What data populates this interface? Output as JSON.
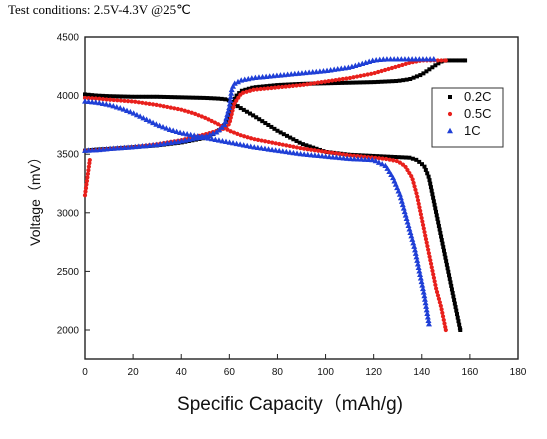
{
  "caption": "Test conditions: 2.5V-4.3V @25℃",
  "chart_data": {
    "type": "scatter",
    "xlabel": "Specific Capacity（mAh/g)",
    "ylabel": "Voltage（mV）",
    "xlim": [
      0,
      180
    ],
    "ylim": [
      1800,
      4500
    ],
    "xticks": [
      0,
      20,
      40,
      60,
      80,
      100,
      120,
      140,
      160,
      180
    ],
    "yticks": [
      2000,
      2500,
      3000,
      3500,
      4000,
      4500
    ],
    "grid": false,
    "legend_position": "right",
    "series": [
      {
        "name": "0.2C",
        "color": "#000000",
        "marker": "square",
        "segments": [
          {
            "x": [
              0,
              5,
              10,
              20,
              30,
              40,
              50,
              55,
              58,
              60,
              62,
              65,
              70,
              80,
              90,
              100,
              110,
              120,
              130,
              135,
              138,
              141,
              143,
              145,
              147,
              149,
              151,
              153,
              155,
              156
            ],
            "y": [
              4010,
              4000,
              3995,
              3990,
              3990,
              3985,
              3980,
              3975,
              3970,
              3960,
              3930,
              3890,
              3830,
              3700,
              3590,
              3520,
              3495,
              3485,
              3475,
              3470,
              3450,
              3400,
              3300,
              3100,
              2900,
              2700,
              2500,
              2300,
              2100,
              2000
            ]
          },
          {
            "x": [
              0,
              5,
              10,
              20,
              30,
              40,
              50,
              55,
              58,
              60,
              61,
              62,
              63,
              65,
              70,
              80,
              90,
              100,
              110,
              120,
              130,
              135,
              140,
              145,
              148,
              150,
              152,
              154,
              156,
              158
            ],
            "y": [
              3530,
              3540,
              3545,
              3560,
              3575,
              3600,
              3640,
              3690,
              3750,
              3830,
              3900,
              3960,
              4000,
              4040,
              4070,
              4090,
              4100,
              4105,
              4110,
              4115,
              4125,
              4140,
              4180,
              4250,
              4290,
              4300,
              4300,
              4300,
              4300,
              4300
            ]
          }
        ]
      },
      {
        "name": "0.5C",
        "color": "#e8201c",
        "marker": "circle",
        "segments": [
          {
            "x": [
              0,
              5,
              10,
              20,
              30,
              40,
              45,
              50,
              55,
              60,
              65,
              70,
              80,
              90,
              100,
              110,
              120,
              125,
              130,
              133,
              136,
              138,
              140,
              142,
              144,
              146,
              148,
              150
            ],
            "y": [
              3980,
              3975,
              3965,
              3950,
              3920,
              3880,
              3850,
              3810,
              3760,
              3700,
              3660,
              3630,
              3590,
              3550,
              3520,
              3490,
              3470,
              3460,
              3440,
              3400,
              3300,
              3150,
              2950,
              2750,
              2550,
              2350,
              2200,
              2000
            ]
          },
          {
            "x": [
              0,
              5,
              10,
              20,
              30,
              40,
              50,
              55,
              58,
              60,
              62,
              65,
              70,
              80,
              90,
              100,
              110,
              120,
              125,
              130,
              135,
              140,
              143,
              146,
              148,
              150
            ],
            "y": [
              3530,
              3535,
              3545,
              3560,
              3585,
              3620,
              3670,
              3700,
              3720,
              3760,
              3930,
              4020,
              4050,
              4070,
              4090,
              4120,
              4150,
              4190,
              4220,
              4250,
              4280,
              4300,
              4300,
              4300,
              4300,
              4300
            ]
          },
          {
            "x": [
              0,
              2
            ],
            "y": [
              3150,
              3450
            ]
          }
        ]
      },
      {
        "name": "1C",
        "color": "#1f3fd6",
        "marker": "triangle",
        "segments": [
          {
            "x": [
              0,
              5,
              10,
              15,
              20,
              25,
              30,
              35,
              40,
              45,
              50,
              55,
              60,
              65,
              70,
              80,
              90,
              100,
              110,
              120,
              125,
              128,
              131,
              133,
              135,
              137,
              139,
              141,
              143
            ],
            "y": [
              3950,
              3940,
              3920,
              3890,
              3850,
              3800,
              3750,
              3710,
              3680,
              3660,
              3640,
              3620,
              3600,
              3580,
              3560,
              3530,
              3500,
              3480,
              3460,
              3450,
              3400,
              3300,
              3150,
              3000,
              2850,
              2700,
              2500,
              2300,
              2050
            ]
          },
          {
            "x": [
              0,
              5,
              10,
              20,
              30,
              40,
              50,
              55,
              58,
              60,
              61,
              62,
              65,
              70,
              80,
              90,
              100,
              110,
              115,
              120,
              125,
              130,
              135,
              140,
              143,
              145
            ],
            "y": [
              3530,
              3535,
              3545,
              3560,
              3580,
              3610,
              3650,
              3690,
              3750,
              3900,
              4050,
              4100,
              4130,
              4150,
              4170,
              4190,
              4210,
              4240,
              4270,
              4300,
              4310,
              4310,
              4310,
              4310,
              4310,
              4310
            ]
          }
        ]
      }
    ]
  }
}
